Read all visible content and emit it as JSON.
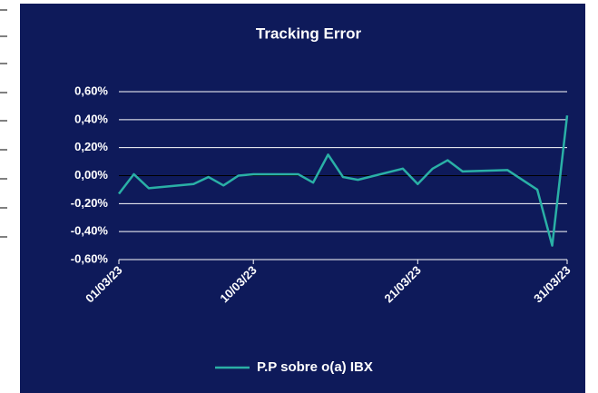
{
  "chart_data": {
    "type": "line",
    "title": "Tracking Error",
    "x": [
      "01/03/23",
      "02/03/23",
      "03/03/23",
      "06/03/23",
      "07/03/23",
      "08/03/23",
      "09/03/23",
      "10/03/23",
      "13/03/23",
      "14/03/23",
      "15/03/23",
      "16/03/23",
      "17/03/23",
      "20/03/23",
      "21/03/23",
      "22/03/23",
      "23/03/23",
      "24/03/23",
      "27/03/23",
      "29/03/23",
      "30/03/23",
      "31/03/23"
    ],
    "series": [
      {
        "name": "P.P sobre o(a) IBX",
        "color": "#2ab0a6",
        "values": [
          -0.13,
          0.01,
          -0.09,
          -0.06,
          -0.01,
          -0.07,
          0.0,
          0.01,
          0.01,
          -0.05,
          0.15,
          -0.01,
          -0.03,
          0.05,
          -0.06,
          0.05,
          0.11,
          0.03,
          0.04,
          -0.1,
          -0.5,
          0.43
        ]
      }
    ],
    "xlim": [
      "01/03/23",
      "31/03/23"
    ],
    "xticks": [
      "01/03/23",
      "10/03/23",
      "21/03/23",
      "31/03/23"
    ],
    "ylim": [
      -0.6,
      0.6
    ],
    "yticks": [
      {
        "value": 0.6,
        "label": "0,60%"
      },
      {
        "value": 0.4,
        "label": "0,40%"
      },
      {
        "value": 0.2,
        "label": "0,20%"
      },
      {
        "value": 0,
        "label": "0,00%"
      },
      {
        "value": -0.2,
        "label": "-0,20%"
      },
      {
        "value": -0.4,
        "label": "-0,40%"
      },
      {
        "value": -0.6,
        "label": "-0,60%"
      }
    ],
    "grid": true,
    "legend": "bottom"
  }
}
